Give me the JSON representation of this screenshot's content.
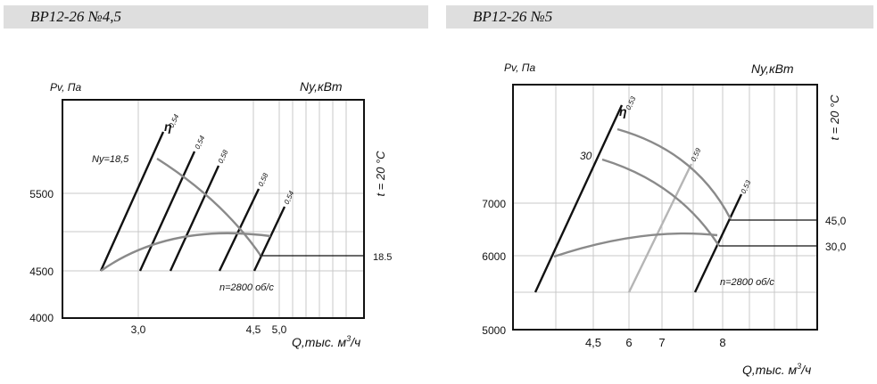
{
  "headers": {
    "left": "ВР12-26 №4,5",
    "right": "ВР12-26 №5"
  },
  "chart_data": [
    {
      "type": "line",
      "title": "ВР12-26 №4,5",
      "xlabel_text": "Q,тыс. м",
      "xlabel_sup": "3",
      "xlabel_tail": "/ч",
      "ylabel": "Pv, Па",
      "power_label": "Ny,кВт",
      "temp_label": "t = 20 °C",
      "speed_label": "n=2800 об/с",
      "power_curve_label": "Ny=18,5",
      "eta_symbol": "η",
      "y_ticks": [
        "5500",
        "4500",
        "4000"
      ],
      "x_ticks": [
        "3,0",
        "4,5",
        "5,0"
      ],
      "power_ticks": [
        "18.5"
      ],
      "efficiency_labels": [
        "0,54",
        "0,54",
        "0,58",
        "0,58",
        "0,54"
      ]
    },
    {
      "type": "line",
      "title": "ВР12-26 №5",
      "xlabel_text": "Q,тыс. м",
      "xlabel_sup": "3",
      "xlabel_tail": "/ч",
      "ylabel": "Pv, Па",
      "power_label": "Ny,кВт",
      "temp_label": "t = 20 °C",
      "speed_label": "n=2800 об/с",
      "eta_symbol": "η",
      "y_ticks": [
        "7000",
        "6000",
        "5000"
      ],
      "x_ticks": [
        "4,5",
        "6",
        "7",
        "8"
      ],
      "power_ticks": [
        "45,0",
        "30,0"
      ],
      "curve_label": "30",
      "efficiency_labels": [
        "0,53",
        "0,59",
        "0,53"
      ]
    }
  ]
}
